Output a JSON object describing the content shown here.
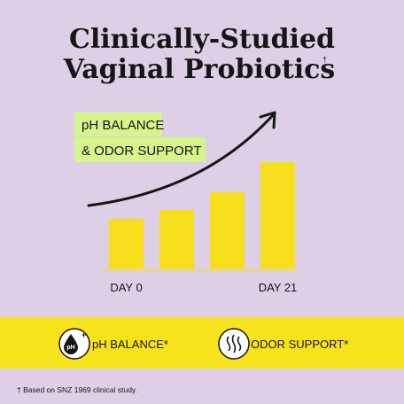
{
  "title": {
    "line1": "Clinically-Studied",
    "line2": "Vaginal Probiotics",
    "marker": "†"
  },
  "chart_data": {
    "type": "bar",
    "labels": [
      "pH BALANCE",
      "& ODOR SUPPORT"
    ],
    "categories": [
      "DAY 0",
      null,
      null,
      "DAY 21"
    ],
    "values": [
      56,
      66,
      86,
      120
    ],
    "color": "#f7df1e"
  },
  "features": [
    {
      "icon_text": "pH",
      "icon_plus": "+",
      "label": "pH BALANCE*"
    },
    {
      "label": "ODOR SUPPORT*"
    }
  ],
  "footnote": "† Based on SNZ 1969 clinical study."
}
